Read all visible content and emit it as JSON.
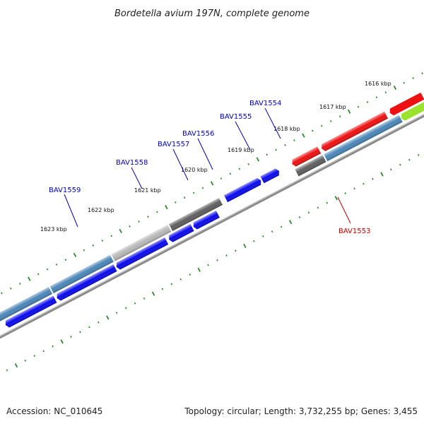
{
  "title": "Bordetella avium 197N, complete genome",
  "footer": {
    "accession": "Accession: NC_010645",
    "summary": "Topology: circular; Length: 3,732,255 bp; Genes: 3,455"
  },
  "colors": {
    "forward_gene": "#0a0aee",
    "highlight_gene": "#ee1111",
    "blue_gray_gene": "#4a86b8",
    "gray_gene": "#636363",
    "light_gray_gene": "#bdbdbd",
    "lime_gene": "#9be32e",
    "backbone": "#777777",
    "tick": "#2a8a2a",
    "label_blue": "#0000cc",
    "label_red": "#cc0000"
  },
  "kbp_labels": [
    "1616 kbp",
    "1617 kbp",
    "1618 kbp",
    "1619 kbp",
    "1620 kbp",
    "1621 kbp",
    "1622 kbp",
    "1623 kbp"
  ],
  "gene_labels": [
    "BAV1554",
    "BAV1555",
    "BAV1556",
    "BAV1557",
    "BAV1558",
    "BAV1559",
    "BAV1553"
  ]
}
